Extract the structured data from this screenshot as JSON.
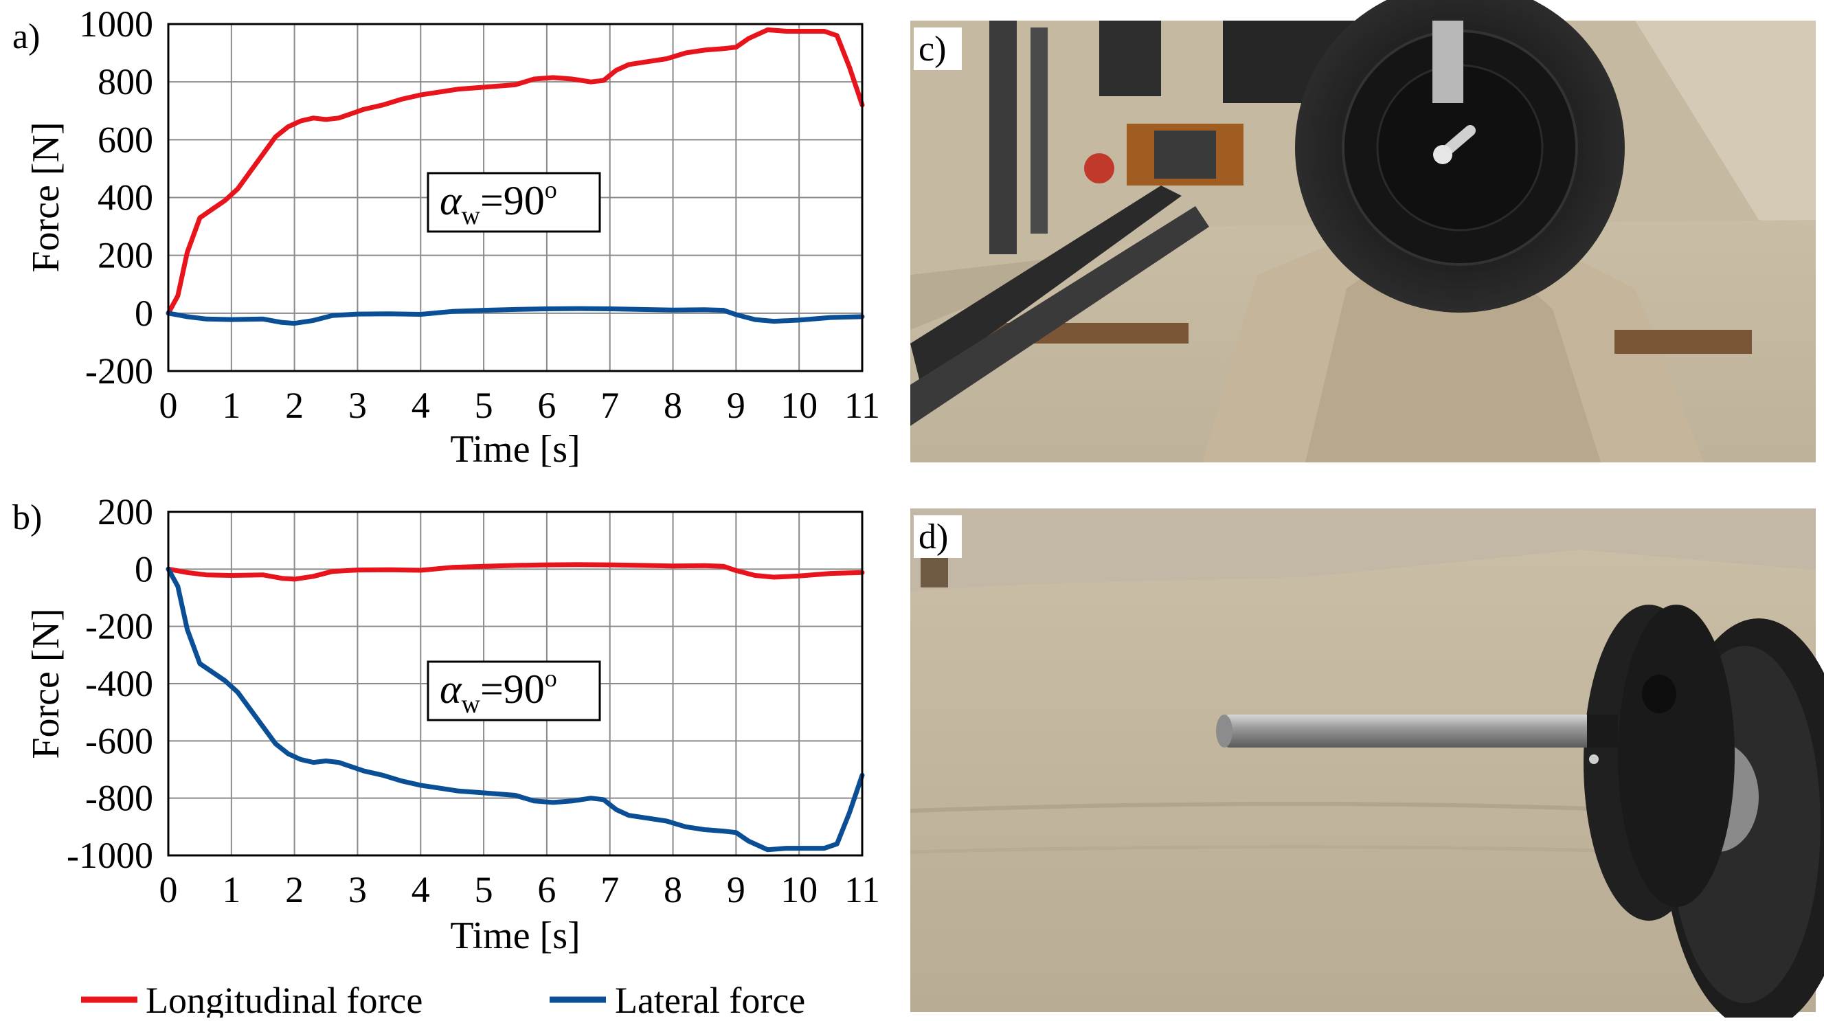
{
  "legend": {
    "items": [
      {
        "label": "Longitudinal force",
        "color": "#e8141c"
      },
      {
        "label": "Lateral force",
        "color": "#0a4f96"
      }
    ]
  },
  "photos": [
    {
      "label": "c)",
      "depicts": "wheel on sand ridge in test rig"
    },
    {
      "label": "d)",
      "depicts": "wheel hub axle in sand"
    }
  ],
  "chart_data": [
    {
      "type": "line",
      "panel_label": "a)",
      "xlabel": "Time [s]",
      "ylabel": "Force [N]",
      "xlim": [
        0,
        11
      ],
      "ylim": [
        -200,
        1000
      ],
      "xticks": [
        0,
        1,
        2,
        3,
        4,
        5,
        6,
        7,
        8,
        9,
        10,
        11
      ],
      "yticks": [
        -200,
        0,
        200,
        400,
        600,
        800,
        1000
      ],
      "grid": true,
      "annotation": {
        "symbol": "α",
        "subscript": "w",
        "text": "=90",
        "superscript": "o"
      },
      "series": [
        {
          "name": "Longitudinal force",
          "color": "#e8141c",
          "x": [
            0,
            0.15,
            0.3,
            0.5,
            0.7,
            0.9,
            1.1,
            1.3,
            1.5,
            1.7,
            1.9,
            2.1,
            2.3,
            2.5,
            2.7,
            2.9,
            3.1,
            3.4,
            3.7,
            4,
            4.3,
            4.6,
            4.9,
            5.2,
            5.5,
            5.8,
            6.1,
            6.4,
            6.7,
            6.9,
            7.1,
            7.3,
            7.6,
            7.9,
            8.2,
            8.5,
            8.8,
            9.0,
            9.2,
            9.5,
            9.8,
            10.1,
            10.4,
            10.6,
            10.8,
            11.0
          ],
          "y": [
            0,
            60,
            210,
            330,
            360,
            390,
            430,
            490,
            550,
            610,
            645,
            665,
            675,
            670,
            675,
            690,
            705,
            720,
            740,
            755,
            765,
            775,
            780,
            785,
            790,
            810,
            815,
            810,
            800,
            805,
            840,
            860,
            870,
            880,
            900,
            910,
            915,
            920,
            950,
            980,
            975,
            975,
            975,
            960,
            850,
            720
          ]
        },
        {
          "name": "Lateral force",
          "color": "#0a4f96",
          "x": [
            0,
            0.3,
            0.6,
            1,
            1.5,
            1.8,
            2,
            2.3,
            2.6,
            3,
            3.5,
            4,
            4.5,
            5,
            5.5,
            6,
            6.5,
            7,
            7.5,
            8,
            8.5,
            8.8,
            9,
            9.3,
            9.6,
            10,
            10.5,
            11
          ],
          "y": [
            0,
            -12,
            -20,
            -22,
            -20,
            -32,
            -35,
            -25,
            -8,
            -3,
            -2,
            -4,
            6,
            10,
            13,
            15,
            16,
            15,
            13,
            11,
            12,
            10,
            -5,
            -22,
            -28,
            -24,
            -15,
            -12
          ]
        }
      ]
    },
    {
      "type": "line",
      "panel_label": "b)",
      "xlabel": "Time [s]",
      "ylabel": "Force [N]",
      "xlim": [
        0,
        11
      ],
      "ylim": [
        -1000,
        200
      ],
      "xticks": [
        0,
        1,
        2,
        3,
        4,
        5,
        6,
        7,
        8,
        9,
        10,
        11
      ],
      "yticks": [
        -1000,
        -800,
        -600,
        -400,
        -200,
        0,
        200
      ],
      "grid": true,
      "annotation": {
        "symbol": "α",
        "subscript": "w",
        "text": "=90",
        "superscript": "o"
      },
      "series": [
        {
          "name": "Longitudinal force",
          "color": "#e8141c",
          "x": [
            0,
            0.3,
            0.6,
            1,
            1.5,
            1.8,
            2,
            2.3,
            2.6,
            3,
            3.5,
            4,
            4.5,
            5,
            5.5,
            6,
            6.5,
            7,
            7.5,
            8,
            8.5,
            8.8,
            9,
            9.3,
            9.6,
            10,
            10.5,
            11
          ],
          "y": [
            0,
            -12,
            -20,
            -22,
            -20,
            -32,
            -35,
            -25,
            -8,
            -3,
            -2,
            -4,
            6,
            10,
            13,
            15,
            16,
            15,
            13,
            11,
            12,
            10,
            -5,
            -22,
            -28,
            -24,
            -15,
            -12
          ]
        },
        {
          "name": "Lateral force",
          "color": "#0a4f96",
          "x": [
            0,
            0.15,
            0.3,
            0.5,
            0.7,
            0.9,
            1.1,
            1.3,
            1.5,
            1.7,
            1.9,
            2.1,
            2.3,
            2.5,
            2.7,
            2.9,
            3.1,
            3.4,
            3.7,
            4,
            4.3,
            4.6,
            4.9,
            5.2,
            5.5,
            5.8,
            6.1,
            6.4,
            6.7,
            6.9,
            7.1,
            7.3,
            7.6,
            7.9,
            8.2,
            8.5,
            8.8,
            9.0,
            9.2,
            9.5,
            9.8,
            10.1,
            10.4,
            10.6,
            10.8,
            11.0
          ],
          "y": [
            0,
            -60,
            -210,
            -330,
            -360,
            -390,
            -430,
            -490,
            -550,
            -610,
            -645,
            -665,
            -675,
            -670,
            -675,
            -690,
            -705,
            -720,
            -740,
            -755,
            -765,
            -775,
            -780,
            -785,
            -790,
            -810,
            -815,
            -810,
            -800,
            -805,
            -840,
            -860,
            -870,
            -880,
            -900,
            -910,
            -915,
            -920,
            -950,
            -980,
            -975,
            -975,
            -975,
            -960,
            -850,
            -720
          ]
        }
      ]
    }
  ]
}
